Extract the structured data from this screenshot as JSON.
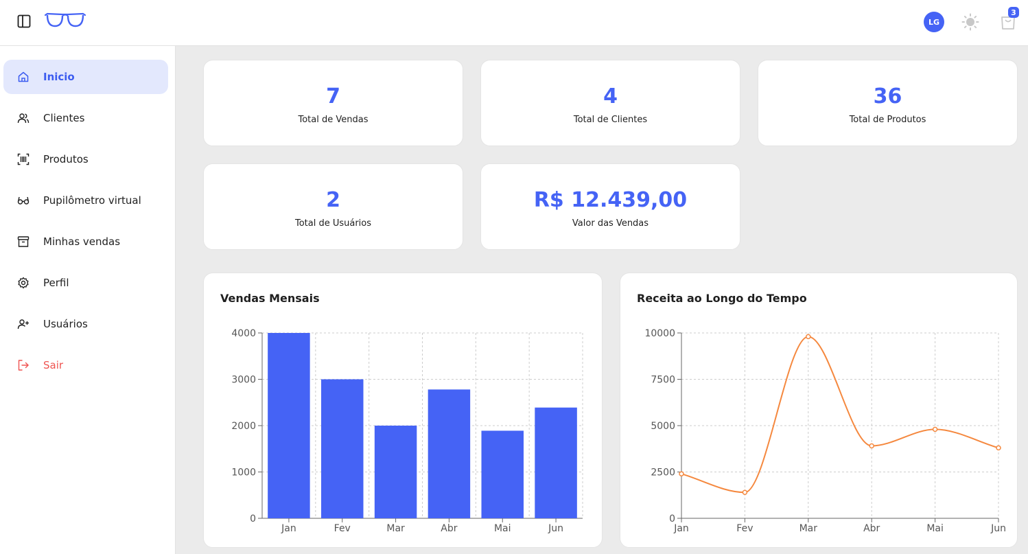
{
  "header": {
    "avatar_initials": "LG",
    "cart_count": "3",
    "icons": {
      "sidebar_toggle": "panel-left-icon",
      "logo": "glasses-logo",
      "theme": "sun-icon",
      "cart": "shopping-bag-icon"
    },
    "accent_color": "#4563f5"
  },
  "sidebar": {
    "items": [
      {
        "label": "Inicio",
        "icon": "home-icon",
        "active": true
      },
      {
        "label": "Clientes",
        "icon": "users-icon"
      },
      {
        "label": "Produtos",
        "icon": "barcode-scan-icon"
      },
      {
        "label": "Pupilômetro virtual",
        "icon": "glasses-icon"
      },
      {
        "label": "Minhas vendas",
        "icon": "archive-icon"
      },
      {
        "label": "Perfil",
        "icon": "gear-icon"
      },
      {
        "label": "Usuários",
        "icon": "user-plus-icon"
      },
      {
        "label": "Sair",
        "icon": "logout-icon",
        "color": "#ef5350"
      }
    ]
  },
  "stats": [
    {
      "value": "7",
      "label": "Total de Vendas"
    },
    {
      "value": "4",
      "label": "Total de Clientes"
    },
    {
      "value": "36",
      "label": "Total de Produtos"
    },
    {
      "value": "2",
      "label": "Total de Usuários"
    },
    {
      "value": "R$ 12.439,00",
      "label": "Valor das Vendas"
    }
  ],
  "charts": {
    "sales": {
      "title": "Vendas Mensais"
    },
    "revenue": {
      "title": "Receita ao Longo do Tempo"
    }
  },
  "chart_data": [
    {
      "type": "bar",
      "title": "Vendas Mensais",
      "categories": [
        "Jan",
        "Fev",
        "Mar",
        "Abr",
        "Mai",
        "Jun"
      ],
      "values": [
        4000,
        3000,
        2000,
        2780,
        1890,
        2390
      ],
      "ylim": [
        0,
        4000
      ],
      "yticks": [
        0,
        1000,
        2000,
        3000,
        4000
      ],
      "grid": true,
      "color": "#4563f5"
    },
    {
      "type": "line",
      "title": "Receita ao Longo do Tempo",
      "categories": [
        "Jan",
        "Fev",
        "Mar",
        "Abr",
        "Mai",
        "Jun"
      ],
      "values": [
        2400,
        1398,
        9800,
        3908,
        4800,
        3800
      ],
      "ylim": [
        0,
        10000
      ],
      "yticks": [
        0,
        2500,
        5000,
        7500,
        10000
      ],
      "grid": true,
      "color": "#f5883e",
      "curve": "smooth"
    }
  ]
}
